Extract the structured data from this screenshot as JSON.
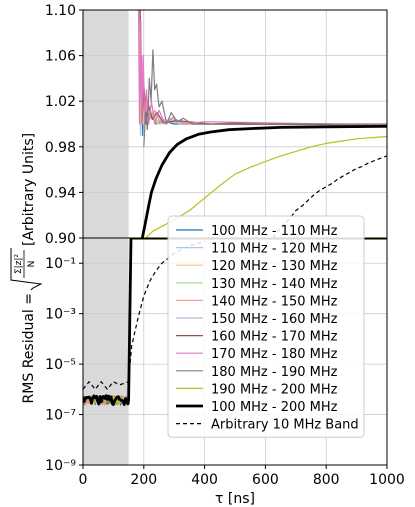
{
  "chart_data": {
    "type": "line",
    "xlabel": "τ [ns]",
    "ylabel": "RMS Residual = ",
    "ylabel_formula": "√(Σ_m |z|²_m / N)",
    "ylabel_units": "[Arbitrary Units]",
    "xlim": [
      0,
      1000
    ],
    "x_ticks": [
      "0",
      "200",
      "400",
      "600",
      "800",
      "1000"
    ],
    "top_panel": {
      "scale": "linear",
      "ylim": [
        0.9,
        1.1
      ],
      "y_ticks": [
        "0.90",
        "0.94",
        "0.98",
        "1.02",
        "1.06",
        "1.10"
      ],
      "grid": true
    },
    "bottom_panel": {
      "scale": "log",
      "ylim": [
        1e-09,
        1
      ],
      "y_ticks": [
        "10⁻⁹",
        "10⁻⁷",
        "10⁻⁵",
        "10⁻³",
        "10⁻¹"
      ],
      "grid": true
    },
    "shaded_region": {
      "x": [
        0,
        150
      ],
      "color": "#d9d9d9"
    },
    "legend_position": "lower-right",
    "series": [
      {
        "name": "100 MHz - 110 MHz",
        "color": "#1f77b4",
        "style": "solid",
        "width": 1.2,
        "plateau": 0.9975,
        "top": [
          [
            184,
            1.12
          ],
          [
            188,
            1.0
          ],
          [
            192,
            1.06
          ],
          [
            196,
            0.99
          ],
          [
            200,
            1.03
          ],
          [
            206,
            1.0
          ],
          [
            214,
            1.015
          ],
          [
            225,
            1.008
          ],
          [
            240,
            1.0
          ],
          [
            260,
            1.003
          ],
          [
            300,
            1.0
          ],
          [
            400,
            1.0
          ],
          [
            600,
            1.0
          ],
          [
            800,
            1.0
          ],
          [
            1000,
            0.999
          ]
        ]
      },
      {
        "name": "110 MHz - 120 MHz",
        "color": "#aec7e8",
        "style": "solid",
        "width": 1.2,
        "plateau": 0.9975,
        "top": [
          [
            184,
            1.12
          ],
          [
            189,
            0.99
          ],
          [
            193,
            1.05
          ],
          [
            198,
            1.0
          ],
          [
            204,
            1.02
          ],
          [
            212,
            1.005
          ],
          [
            222,
            1.012
          ],
          [
            240,
            1.002
          ],
          [
            270,
            1.004
          ],
          [
            320,
            1.0
          ],
          [
            500,
            1.0
          ],
          [
            1000,
            0.999
          ]
        ]
      },
      {
        "name": "120 MHz - 130 MHz",
        "color": "#ffbb78",
        "style": "solid",
        "width": 1.2,
        "plateau": 0.9975,
        "top": [
          [
            185,
            1.12
          ],
          [
            190,
            1.0
          ],
          [
            195,
            1.05
          ],
          [
            200,
            1.0
          ],
          [
            207,
            1.018
          ],
          [
            216,
            1.003
          ],
          [
            228,
            1.01
          ],
          [
            245,
            1.0
          ],
          [
            280,
            1.003
          ],
          [
            350,
            1.0
          ],
          [
            1000,
            0.999
          ]
        ]
      },
      {
        "name": "130 MHz - 140 MHz",
        "color": "#98df8a",
        "style": "solid",
        "width": 1.2,
        "plateau": 0.9975,
        "top": [
          [
            185,
            1.12
          ],
          [
            191,
            1.0
          ],
          [
            196,
            1.04
          ],
          [
            202,
            1.002
          ],
          [
            210,
            1.015
          ],
          [
            220,
            1.004
          ],
          [
            232,
            1.009
          ],
          [
            250,
            1.0
          ],
          [
            300,
            1.002
          ],
          [
            400,
            1.0
          ],
          [
            1000,
            0.999
          ]
        ]
      },
      {
        "name": "140 MHz - 150 MHz",
        "color": "#ff9896",
        "style": "solid",
        "width": 1.2,
        "plateau": 0.9975,
        "top": [
          [
            186,
            1.12
          ],
          [
            192,
            1.0
          ],
          [
            198,
            1.045
          ],
          [
            204,
            1.003
          ],
          [
            212,
            1.02
          ],
          [
            222,
            1.005
          ],
          [
            236,
            1.012
          ],
          [
            255,
            1.001
          ],
          [
            290,
            1.004
          ],
          [
            380,
            1.0
          ],
          [
            1000,
            0.999
          ]
        ]
      },
      {
        "name": "150 MHz - 160 MHz",
        "color": "#c5b0d5",
        "style": "solid",
        "width": 1.2,
        "plateau": 0.9975,
        "top": [
          [
            186,
            1.12
          ],
          [
            193,
            1.0
          ],
          [
            199,
            1.04
          ],
          [
            206,
            1.004
          ],
          [
            214,
            1.018
          ],
          [
            226,
            1.006
          ],
          [
            240,
            1.011
          ],
          [
            260,
            1.002
          ],
          [
            300,
            1.003
          ],
          [
            400,
            1.0
          ],
          [
            1000,
            0.999
          ]
        ]
      },
      {
        "name": "160 MHz - 170 MHz",
        "color": "#8c564b",
        "style": "solid",
        "width": 1.2,
        "plateau": 0.9975,
        "top": [
          [
            187,
            1.12
          ],
          [
            194,
            1.0
          ],
          [
            200,
            1.035
          ],
          [
            208,
            1.005
          ],
          [
            216,
            1.016
          ],
          [
            228,
            1.004
          ],
          [
            244,
            1.01
          ],
          [
            265,
            1.001
          ],
          [
            310,
            1.003
          ],
          [
            420,
            1.0
          ],
          [
            1000,
            0.999
          ]
        ]
      },
      {
        "name": "170 MHz - 180 MHz",
        "color": "#e377c2",
        "style": "solid",
        "width": 1.2,
        "plateau": 0.9975,
        "top": [
          [
            182,
            1.12
          ],
          [
            186,
            1.0
          ],
          [
            190,
            1.09
          ],
          [
            194,
            1.0
          ],
          [
            198,
            1.06
          ],
          [
            203,
            1.0
          ],
          [
            209,
            1.03
          ],
          [
            216,
            1.0
          ],
          [
            225,
            1.02
          ],
          [
            236,
            1.0
          ],
          [
            250,
            1.012
          ],
          [
            270,
            1.0
          ],
          [
            295,
            1.006
          ],
          [
            330,
            1.0
          ],
          [
            400,
            1.002
          ],
          [
            1000,
            0.999
          ]
        ]
      },
      {
        "name": "180 MHz - 190 MHz",
        "color": "#7f7f7f",
        "style": "solid",
        "width": 1.2,
        "plateau": 0.9975,
        "top": [
          [
            200,
            0.98
          ],
          [
            206,
            1.01
          ],
          [
            212,
            0.995
          ],
          [
            218,
            1.04
          ],
          [
            224,
            1.02
          ],
          [
            230,
            1.065
          ],
          [
            236,
            1.03
          ],
          [
            242,
            1.035
          ],
          [
            250,
            1.015
          ],
          [
            260,
            1.02
          ],
          [
            275,
            1.0
          ],
          [
            290,
            1.01
          ],
          [
            310,
            1.002
          ],
          [
            330,
            1.005
          ],
          [
            360,
            1.0
          ],
          [
            420,
            1.0
          ],
          [
            500,
            1.001
          ],
          [
            600,
            1.0
          ],
          [
            1000,
            1.0
          ]
        ]
      },
      {
        "name": "190 MHz - 200 MHz",
        "color": "#bcbd22",
        "style": "solid",
        "width": 1.2,
        "plateau": 0.9,
        "top": [
          [
            190,
            0.896
          ],
          [
            230,
            0.906
          ],
          [
            300,
            0.916
          ],
          [
            350,
            0.924
          ],
          [
            400,
            0.935
          ],
          [
            450,
            0.946
          ],
          [
            500,
            0.956
          ],
          [
            550,
            0.962
          ],
          [
            600,
            0.967
          ],
          [
            650,
            0.972
          ],
          [
            700,
            0.976
          ],
          [
            750,
            0.98
          ],
          [
            800,
            0.983
          ],
          [
            850,
            0.985
          ],
          [
            900,
            0.987
          ],
          [
            950,
            0.988
          ],
          [
            1000,
            0.989
          ]
        ]
      },
      {
        "name": "100 MHz - 200 MHz",
        "color": "#000000",
        "style": "solid",
        "width": 2.8,
        "plateau": 0.9975,
        "top": [
          [
            195,
            0.9
          ],
          [
            205,
            0.913
          ],
          [
            215,
            0.927
          ],
          [
            225,
            0.94
          ],
          [
            240,
            0.952
          ],
          [
            260,
            0.964
          ],
          [
            285,
            0.975
          ],
          [
            310,
            0.982
          ],
          [
            340,
            0.987
          ],
          [
            380,
            0.991
          ],
          [
            420,
            0.993
          ],
          [
            480,
            0.995
          ],
          [
            550,
            0.996
          ],
          [
            650,
            0.997
          ],
          [
            800,
            0.9975
          ],
          [
            1000,
            0.998
          ]
        ]
      },
      {
        "name": "Arbitrary 10 MHz Band",
        "color": "#000000",
        "style": "dashed",
        "width": 1.2,
        "plateau": null,
        "top": [
          [
            625,
            0.9
          ],
          [
            650,
            0.909
          ],
          [
            680,
            0.917
          ],
          [
            700,
            0.924
          ],
          [
            720,
            0.928
          ],
          [
            740,
            0.933
          ],
          [
            760,
            0.938
          ],
          [
            780,
            0.942
          ],
          [
            800,
            0.945
          ],
          [
            820,
            0.948
          ],
          [
            840,
            0.952
          ],
          [
            860,
            0.955
          ],
          [
            880,
            0.958
          ],
          [
            900,
            0.961
          ],
          [
            920,
            0.963
          ],
          [
            940,
            0.966
          ],
          [
            960,
            0.968
          ],
          [
            980,
            0.97
          ],
          [
            1000,
            0.972
          ]
        ],
        "bottom": [
          [
            0,
            1e-06
          ],
          [
            20,
            2e-06
          ],
          [
            40,
            1e-06
          ],
          [
            60,
            2e-06
          ],
          [
            80,
            1e-06
          ],
          [
            100,
            2e-06
          ],
          [
            120,
            1.5e-06
          ],
          [
            150,
            2e-06
          ],
          [
            160,
            5e-05
          ],
          [
            180,
            0.0006
          ],
          [
            200,
            0.005
          ],
          [
            220,
            0.02
          ],
          [
            240,
            0.05
          ],
          [
            260,
            0.1
          ],
          [
            300,
            0.25
          ],
          [
            350,
            0.5
          ],
          [
            400,
            0.7
          ]
        ]
      }
    ],
    "colors": [
      "#1f77b4",
      "#aec7e8",
      "#ffbb78",
      "#98df8a",
      "#ff9896",
      "#c5b0d5",
      "#8c564b",
      "#e377c2",
      "#7f7f7f",
      "#bcbd22",
      "#000000",
      "#000000"
    ]
  }
}
